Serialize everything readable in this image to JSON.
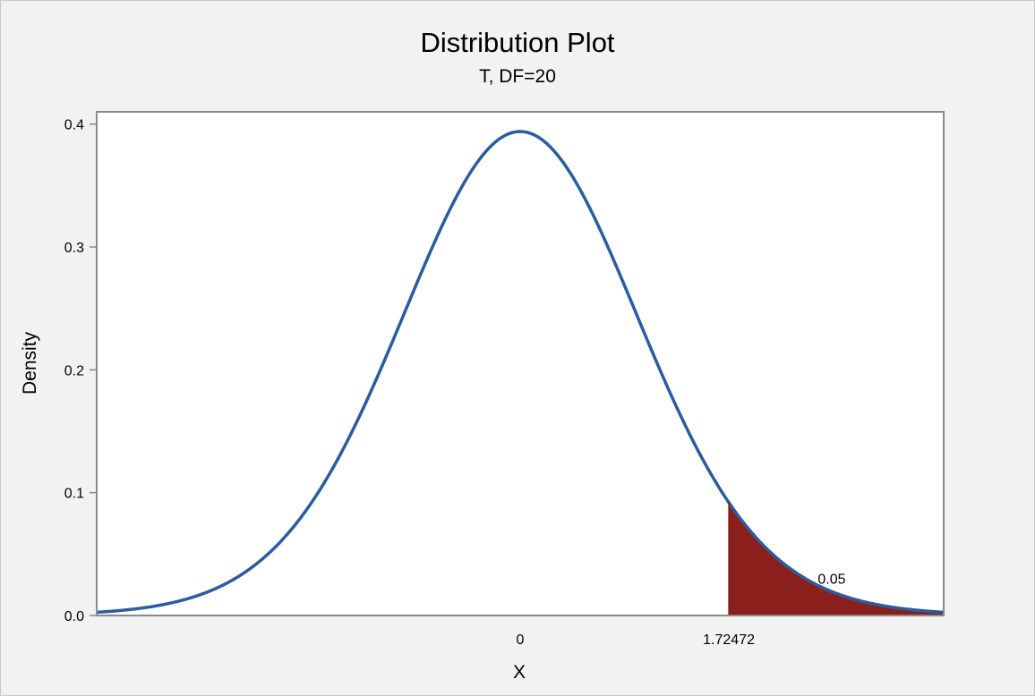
{
  "chart_data": {
    "type": "area",
    "title": "Distribution Plot",
    "subtitle": "T, DF=20",
    "xlabel": "X",
    "ylabel": "Density",
    "distribution": "T",
    "df": 20,
    "xlim": [
      -3.5,
      3.5
    ],
    "ylim": [
      0,
      0.41
    ],
    "y_ticks": [
      0.0,
      0.1,
      0.2,
      0.3,
      0.4
    ],
    "y_tick_labels": [
      "0.0",
      "0.1",
      "0.2",
      "0.3",
      "0.4"
    ],
    "x_ticks": [
      0,
      1.72472
    ],
    "x_tick_labels": [
      "0",
      "1.72472"
    ],
    "shaded_region": {
      "from": 1.72472,
      "to": 3.5,
      "area": 0.05,
      "label": "0.05"
    },
    "grid": false,
    "colors": {
      "curve": "#2a5c9e",
      "shade": "#8b1f1c",
      "axis": "#8a8a8a",
      "plot_bg": "#ffffff",
      "page_bg": "#f2f2f2"
    }
  }
}
